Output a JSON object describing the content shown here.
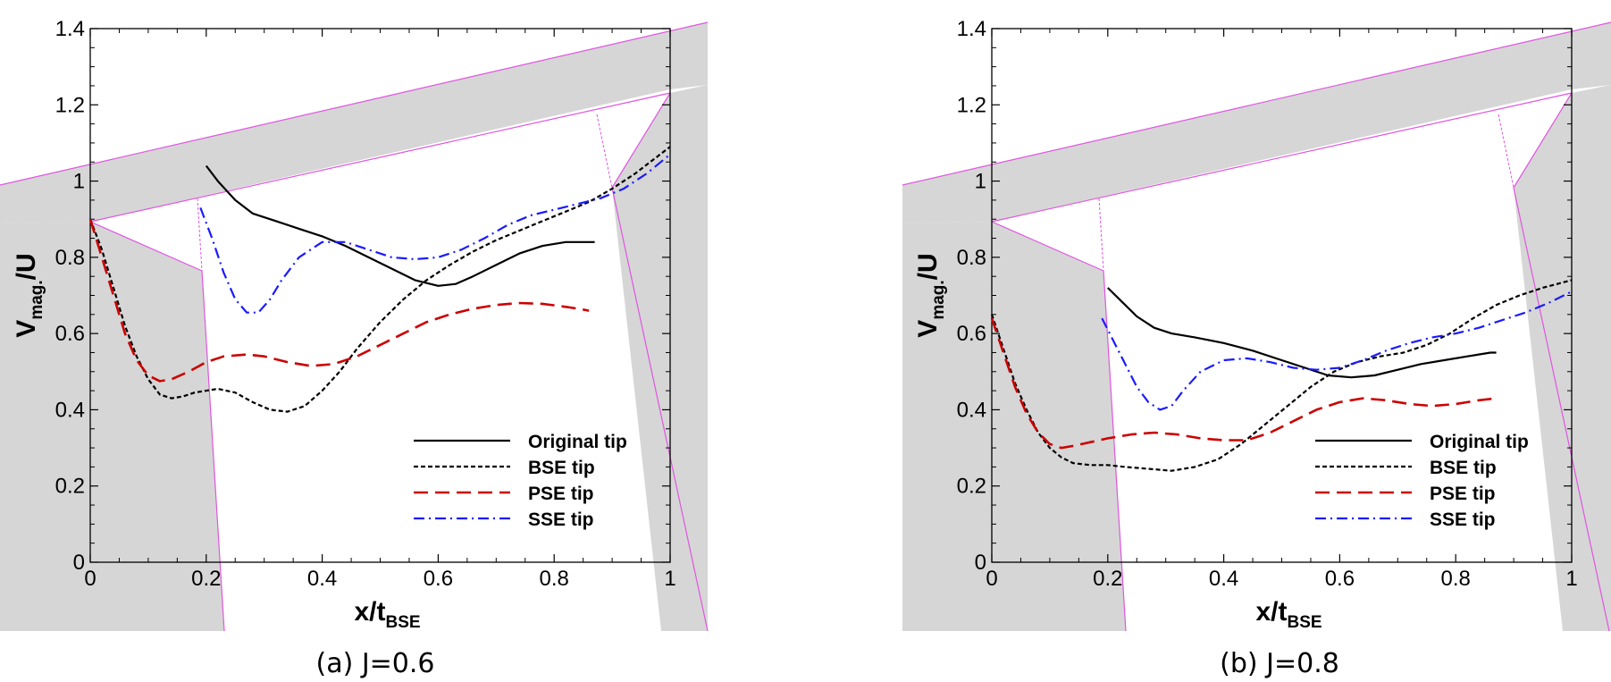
{
  "colors": {
    "original": "#000000",
    "bse": "#000000",
    "pse": "#cc0000",
    "sse": "#1a1aff",
    "blade_fill": "#d6d6d6",
    "blade_edge": "#e055e0"
  },
  "chart_data": [
    {
      "type": "line",
      "caption": "(a) J=0.6",
      "xlabel_main": "x/t",
      "xlabel_sub": "BSE",
      "ylabel_main": "V",
      "ylabel_sub": "mag.",
      "ylabel_tail": "/U",
      "xlim": [
        0,
        1
      ],
      "ylim": [
        0,
        1.4
      ],
      "xticks": [
        0,
        0.2,
        0.4,
        0.6,
        0.8,
        1
      ],
      "xtick_labels": [
        "0",
        "0.2",
        "0.4",
        "0.6",
        "0.8",
        "1"
      ],
      "yticks": [
        0,
        0.2,
        0.4,
        0.6,
        0.8,
        1,
        1.2,
        1.4
      ],
      "ytick_labels": [
        "0",
        "0.2",
        "0.4",
        "0.6",
        "0.8",
        "1",
        "1.2",
        "1.4"
      ],
      "legend_position": "bottom-right",
      "series": [
        {
          "name": "Original tip",
          "style": "solid",
          "color_key": "original",
          "x": [
            0.2,
            0.22,
            0.25,
            0.28,
            0.32,
            0.36,
            0.4,
            0.44,
            0.48,
            0.52,
            0.56,
            0.6,
            0.63,
            0.66,
            0.7,
            0.74,
            0.78,
            0.82,
            0.86,
            0.87
          ],
          "y": [
            1.04,
            1.0,
            0.95,
            0.915,
            0.895,
            0.875,
            0.855,
            0.83,
            0.8,
            0.77,
            0.74,
            0.725,
            0.73,
            0.75,
            0.78,
            0.81,
            0.83,
            0.84,
            0.84,
            0.84
          ]
        },
        {
          "name": "BSE tip",
          "style": "dotted",
          "color_key": "bse",
          "x": [
            0.0,
            0.02,
            0.04,
            0.06,
            0.08,
            0.1,
            0.12,
            0.14,
            0.16,
            0.18,
            0.2,
            0.22,
            0.25,
            0.28,
            0.31,
            0.34,
            0.37,
            0.4,
            0.43,
            0.46,
            0.5,
            0.54,
            0.58,
            0.62,
            0.66,
            0.7,
            0.74,
            0.78,
            0.82,
            0.86,
            0.9,
            0.94,
            0.97,
            1.0
          ],
          "y": [
            0.9,
            0.82,
            0.72,
            0.62,
            0.54,
            0.48,
            0.44,
            0.43,
            0.435,
            0.445,
            0.45,
            0.455,
            0.445,
            0.42,
            0.4,
            0.395,
            0.41,
            0.45,
            0.5,
            0.56,
            0.63,
            0.69,
            0.74,
            0.78,
            0.815,
            0.845,
            0.87,
            0.895,
            0.92,
            0.945,
            0.98,
            1.02,
            1.055,
            1.09
          ]
        },
        {
          "name": "PSE tip",
          "style": "dashed",
          "color_key": "pse",
          "x": [
            0.0,
            0.02,
            0.04,
            0.06,
            0.08,
            0.1,
            0.12,
            0.14,
            0.17,
            0.2,
            0.23,
            0.27,
            0.3,
            0.34,
            0.38,
            0.42,
            0.46,
            0.5,
            0.54,
            0.58,
            0.62,
            0.66,
            0.7,
            0.74,
            0.78,
            0.82,
            0.85,
            0.86
          ],
          "y": [
            0.9,
            0.8,
            0.7,
            0.6,
            0.53,
            0.49,
            0.475,
            0.48,
            0.5,
            0.525,
            0.54,
            0.545,
            0.54,
            0.525,
            0.515,
            0.52,
            0.54,
            0.57,
            0.6,
            0.63,
            0.65,
            0.665,
            0.675,
            0.68,
            0.678,
            0.67,
            0.663,
            0.66
          ]
        },
        {
          "name": "SSE tip",
          "style": "dashdot",
          "color_key": "sse",
          "x": [
            0.19,
            0.21,
            0.23,
            0.25,
            0.27,
            0.29,
            0.31,
            0.33,
            0.36,
            0.4,
            0.44,
            0.48,
            0.52,
            0.56,
            0.6,
            0.64,
            0.68,
            0.72,
            0.76,
            0.8,
            0.84,
            0.88,
            0.92,
            0.96,
            1.0
          ],
          "y": [
            0.93,
            0.85,
            0.76,
            0.69,
            0.655,
            0.655,
            0.69,
            0.74,
            0.8,
            0.84,
            0.84,
            0.82,
            0.8,
            0.795,
            0.8,
            0.82,
            0.85,
            0.885,
            0.91,
            0.925,
            0.94,
            0.955,
            0.98,
            1.02,
            1.07
          ]
        }
      ]
    },
    {
      "type": "line",
      "caption": "(b) J=0.8",
      "xlabel_main": "x/t",
      "xlabel_sub": "BSE",
      "ylabel_main": "V",
      "ylabel_sub": "mag.",
      "ylabel_tail": "/U",
      "xlim": [
        0,
        1
      ],
      "ylim": [
        0,
        1.4
      ],
      "xticks": [
        0,
        0.2,
        0.4,
        0.6,
        0.8,
        1
      ],
      "xtick_labels": [
        "0",
        "0.2",
        "0.4",
        "0.6",
        "0.8",
        "1"
      ],
      "yticks": [
        0,
        0.2,
        0.4,
        0.6,
        0.8,
        1,
        1.2,
        1.4
      ],
      "ytick_labels": [
        "0",
        "0.2",
        "0.4",
        "0.6",
        "0.8",
        "1",
        "1.2",
        "1.4"
      ],
      "legend_position": "bottom-right",
      "series": [
        {
          "name": "Original tip",
          "style": "solid",
          "color_key": "original",
          "x": [
            0.2,
            0.22,
            0.25,
            0.28,
            0.31,
            0.35,
            0.4,
            0.45,
            0.5,
            0.54,
            0.58,
            0.62,
            0.66,
            0.7,
            0.74,
            0.78,
            0.82,
            0.86,
            0.87
          ],
          "y": [
            0.72,
            0.69,
            0.645,
            0.615,
            0.6,
            0.59,
            0.575,
            0.555,
            0.53,
            0.51,
            0.49,
            0.485,
            0.49,
            0.505,
            0.52,
            0.53,
            0.54,
            0.55,
            0.55
          ]
        },
        {
          "name": "BSE tip",
          "style": "dotted",
          "color_key": "bse",
          "x": [
            0.0,
            0.02,
            0.04,
            0.06,
            0.08,
            0.1,
            0.12,
            0.14,
            0.17,
            0.2,
            0.23,
            0.27,
            0.31,
            0.35,
            0.39,
            0.43,
            0.47,
            0.51,
            0.55,
            0.59,
            0.63,
            0.67,
            0.71,
            0.75,
            0.79,
            0.83,
            0.87,
            0.91,
            0.95,
            1.0
          ],
          "y": [
            0.65,
            0.56,
            0.47,
            0.4,
            0.34,
            0.3,
            0.275,
            0.26,
            0.255,
            0.255,
            0.25,
            0.245,
            0.24,
            0.25,
            0.27,
            0.31,
            0.36,
            0.41,
            0.46,
            0.5,
            0.525,
            0.54,
            0.55,
            0.57,
            0.6,
            0.64,
            0.675,
            0.7,
            0.72,
            0.74
          ]
        },
        {
          "name": "PSE tip",
          "style": "dashed",
          "color_key": "pse",
          "x": [
            0.0,
            0.02,
            0.04,
            0.06,
            0.08,
            0.1,
            0.12,
            0.14,
            0.17,
            0.2,
            0.24,
            0.28,
            0.32,
            0.36,
            0.4,
            0.44,
            0.48,
            0.52,
            0.56,
            0.6,
            0.64,
            0.68,
            0.72,
            0.76,
            0.8,
            0.84,
            0.87
          ],
          "y": [
            0.64,
            0.55,
            0.46,
            0.39,
            0.34,
            0.31,
            0.3,
            0.305,
            0.315,
            0.325,
            0.335,
            0.34,
            0.335,
            0.325,
            0.32,
            0.32,
            0.34,
            0.37,
            0.4,
            0.42,
            0.43,
            0.425,
            0.415,
            0.41,
            0.415,
            0.425,
            0.43
          ]
        },
        {
          "name": "SSE tip",
          "style": "dashdot",
          "color_key": "sse",
          "x": [
            0.19,
            0.21,
            0.23,
            0.25,
            0.27,
            0.29,
            0.31,
            0.33,
            0.36,
            0.4,
            0.44,
            0.48,
            0.52,
            0.56,
            0.6,
            0.64,
            0.68,
            0.72,
            0.76,
            0.8,
            0.84,
            0.88,
            0.92,
            0.96,
            1.0
          ],
          "y": [
            0.64,
            0.58,
            0.52,
            0.46,
            0.42,
            0.4,
            0.41,
            0.45,
            0.5,
            0.53,
            0.535,
            0.525,
            0.51,
            0.505,
            0.51,
            0.53,
            0.555,
            0.575,
            0.59,
            0.6,
            0.615,
            0.635,
            0.655,
            0.68,
            0.71
          ]
        }
      ]
    }
  ]
}
